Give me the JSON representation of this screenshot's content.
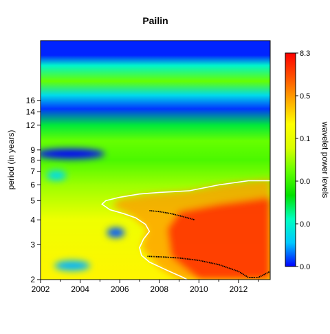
{
  "chart_data": {
    "type": "heatmap",
    "title": "Pailin",
    "xlabel": "",
    "ylabel": "period (in years)",
    "colorbar_label": "wavelet power levels",
    "xlim": [
      2002,
      2013.6
    ],
    "ylim": [
      2,
      32
    ],
    "y_scale": "log2",
    "x_ticks": [
      2002,
      2004,
      2006,
      2008,
      2010,
      2012
    ],
    "x_tick_labels": [
      "2002",
      "2004",
      "2006",
      "2008",
      "2010",
      "2012"
    ],
    "y_ticks": [
      2,
      3,
      4,
      5,
      6,
      7,
      8,
      9,
      12,
      14,
      16
    ],
    "y_tick_labels": [
      "2",
      "3",
      "4",
      "5",
      "6",
      "7",
      "8",
      "9",
      "12",
      "14",
      "16"
    ],
    "colorbar_tick_labels": [
      "0.0",
      "0.0",
      "0.0",
      "0.1",
      "0.5",
      "8.3"
    ],
    "colors": [
      "#0000ff",
      "#00c8ff",
      "#00ffc0",
      "#00e000",
      "#60ff00",
      "#d8ff00",
      "#ffff00",
      "#ffaa00",
      "#ff5000",
      "#ff0000"
    ],
    "significance_contour_color": "#ffffff",
    "ridge_color": "#000000",
    "bands": [
      {
        "period": 27,
        "level": 0.02
      },
      {
        "period": 24,
        "level": 0.2
      },
      {
        "period": 20,
        "level": 0.45
      },
      {
        "period": 17,
        "level": 0.15
      },
      {
        "period": 14.5,
        "level": 0.03
      },
      {
        "period": 12,
        "level": 0.3
      },
      {
        "period": 10,
        "level": 0.45
      },
      {
        "period": 8,
        "level": 0.42
      },
      {
        "period": 6,
        "level": 0.5
      },
      {
        "period": 4,
        "level": 0.62
      },
      {
        "period": 2,
        "level": 0.68
      }
    ],
    "features": [
      {
        "x": 2003.5,
        "period": 8.6,
        "level": 0.0,
        "extent_years": 3.5
      },
      {
        "x": 2002.8,
        "period": 6.7,
        "level": 0.15,
        "extent_years": 1.0
      },
      {
        "x": 2005.8,
        "period": 3.45,
        "level": 0.05,
        "extent_years": 0.9
      },
      {
        "x": 2003.6,
        "period": 2.35,
        "level": 0.1,
        "extent_years": 1.8
      }
    ],
    "significance_contour": [
      [
        2013.6,
        6.3
      ],
      [
        2012.5,
        6.3
      ],
      [
        2011.0,
        6.0
      ],
      [
        2009.5,
        5.6
      ],
      [
        2008.0,
        5.5
      ],
      [
        2007.0,
        5.4
      ],
      [
        2006.0,
        5.2
      ],
      [
        2005.3,
        5.0
      ],
      [
        2005.1,
        4.8
      ],
      [
        2005.5,
        4.5
      ],
      [
        2006.2,
        4.3
      ],
      [
        2006.8,
        4.1
      ],
      [
        2007.3,
        3.8
      ],
      [
        2007.5,
        3.5
      ],
      [
        2007.2,
        3.2
      ],
      [
        2007.0,
        2.9
      ],
      [
        2007.1,
        2.65
      ],
      [
        2007.5,
        2.45
      ],
      [
        2008.3,
        2.25
      ],
      [
        2009.2,
        2.05
      ],
      [
        2009.4,
        2.0
      ]
    ],
    "ridges": [
      [
        [
          2007.5,
          4.45
        ],
        [
          2008.0,
          4.4
        ],
        [
          2008.6,
          4.3
        ],
        [
          2009.2,
          4.15
        ],
        [
          2009.8,
          4.0
        ]
      ],
      [
        [
          2007.4,
          2.62
        ],
        [
          2008.2,
          2.6
        ],
        [
          2009.0,
          2.57
        ],
        [
          2010.0,
          2.5
        ],
        [
          2011.0,
          2.38
        ],
        [
          2012.0,
          2.2
        ],
        [
          2012.5,
          2.05
        ],
        [
          2013.0,
          2.05
        ],
        [
          2013.6,
          2.2
        ]
      ]
    ]
  }
}
